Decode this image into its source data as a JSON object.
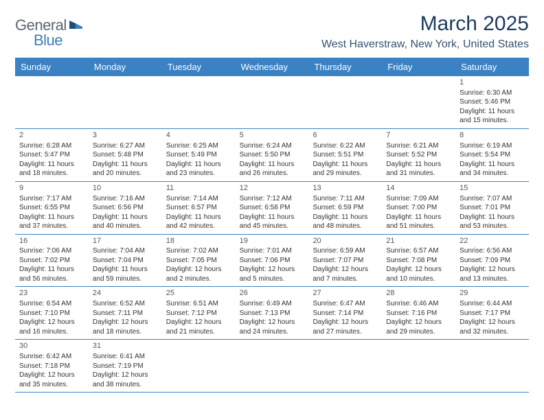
{
  "brand": {
    "general": "General",
    "blue": "Blue"
  },
  "title": {
    "month": "March 2025",
    "location": "West Haverstraw, New York, United States"
  },
  "colors": {
    "header_bg": "#3a82c4",
    "header_text": "#ffffff",
    "title_color": "#1f3a5f",
    "location_color": "#35526f",
    "logo_gray": "#5a6770",
    "logo_blue": "#3a7fb8",
    "row_border": "#3a82c4",
    "cell_text": "#333333",
    "background": "#ffffff"
  },
  "table": {
    "type": "calendar-grid",
    "columns": [
      "Sunday",
      "Monday",
      "Tuesday",
      "Wednesday",
      "Thursday",
      "Friday",
      "Saturday"
    ],
    "weeks": [
      [
        null,
        null,
        null,
        null,
        null,
        null,
        {
          "d": "1",
          "sr": "Sunrise: 6:30 AM",
          "ss": "Sunset: 5:46 PM",
          "dl": "Daylight: 11 hours and 15 minutes."
        }
      ],
      [
        {
          "d": "2",
          "sr": "Sunrise: 6:28 AM",
          "ss": "Sunset: 5:47 PM",
          "dl": "Daylight: 11 hours and 18 minutes."
        },
        {
          "d": "3",
          "sr": "Sunrise: 6:27 AM",
          "ss": "Sunset: 5:48 PM",
          "dl": "Daylight: 11 hours and 20 minutes."
        },
        {
          "d": "4",
          "sr": "Sunrise: 6:25 AM",
          "ss": "Sunset: 5:49 PM",
          "dl": "Daylight: 11 hours and 23 minutes."
        },
        {
          "d": "5",
          "sr": "Sunrise: 6:24 AM",
          "ss": "Sunset: 5:50 PM",
          "dl": "Daylight: 11 hours and 26 minutes."
        },
        {
          "d": "6",
          "sr": "Sunrise: 6:22 AM",
          "ss": "Sunset: 5:51 PM",
          "dl": "Daylight: 11 hours and 29 minutes."
        },
        {
          "d": "7",
          "sr": "Sunrise: 6:21 AM",
          "ss": "Sunset: 5:52 PM",
          "dl": "Daylight: 11 hours and 31 minutes."
        },
        {
          "d": "8",
          "sr": "Sunrise: 6:19 AM",
          "ss": "Sunset: 5:54 PM",
          "dl": "Daylight: 11 hours and 34 minutes."
        }
      ],
      [
        {
          "d": "9",
          "sr": "Sunrise: 7:17 AM",
          "ss": "Sunset: 6:55 PM",
          "dl": "Daylight: 11 hours and 37 minutes."
        },
        {
          "d": "10",
          "sr": "Sunrise: 7:16 AM",
          "ss": "Sunset: 6:56 PM",
          "dl": "Daylight: 11 hours and 40 minutes."
        },
        {
          "d": "11",
          "sr": "Sunrise: 7:14 AM",
          "ss": "Sunset: 6:57 PM",
          "dl": "Daylight: 11 hours and 42 minutes."
        },
        {
          "d": "12",
          "sr": "Sunrise: 7:12 AM",
          "ss": "Sunset: 6:58 PM",
          "dl": "Daylight: 11 hours and 45 minutes."
        },
        {
          "d": "13",
          "sr": "Sunrise: 7:11 AM",
          "ss": "Sunset: 6:59 PM",
          "dl": "Daylight: 11 hours and 48 minutes."
        },
        {
          "d": "14",
          "sr": "Sunrise: 7:09 AM",
          "ss": "Sunset: 7:00 PM",
          "dl": "Daylight: 11 hours and 51 minutes."
        },
        {
          "d": "15",
          "sr": "Sunrise: 7:07 AM",
          "ss": "Sunset: 7:01 PM",
          "dl": "Daylight: 11 hours and 53 minutes."
        }
      ],
      [
        {
          "d": "16",
          "sr": "Sunrise: 7:06 AM",
          "ss": "Sunset: 7:02 PM",
          "dl": "Daylight: 11 hours and 56 minutes."
        },
        {
          "d": "17",
          "sr": "Sunrise: 7:04 AM",
          "ss": "Sunset: 7:04 PM",
          "dl": "Daylight: 11 hours and 59 minutes."
        },
        {
          "d": "18",
          "sr": "Sunrise: 7:02 AM",
          "ss": "Sunset: 7:05 PM",
          "dl": "Daylight: 12 hours and 2 minutes."
        },
        {
          "d": "19",
          "sr": "Sunrise: 7:01 AM",
          "ss": "Sunset: 7:06 PM",
          "dl": "Daylight: 12 hours and 5 minutes."
        },
        {
          "d": "20",
          "sr": "Sunrise: 6:59 AM",
          "ss": "Sunset: 7:07 PM",
          "dl": "Daylight: 12 hours and 7 minutes."
        },
        {
          "d": "21",
          "sr": "Sunrise: 6:57 AM",
          "ss": "Sunset: 7:08 PM",
          "dl": "Daylight: 12 hours and 10 minutes."
        },
        {
          "d": "22",
          "sr": "Sunrise: 6:56 AM",
          "ss": "Sunset: 7:09 PM",
          "dl": "Daylight: 12 hours and 13 minutes."
        }
      ],
      [
        {
          "d": "23",
          "sr": "Sunrise: 6:54 AM",
          "ss": "Sunset: 7:10 PM",
          "dl": "Daylight: 12 hours and 16 minutes."
        },
        {
          "d": "24",
          "sr": "Sunrise: 6:52 AM",
          "ss": "Sunset: 7:11 PM",
          "dl": "Daylight: 12 hours and 18 minutes."
        },
        {
          "d": "25",
          "sr": "Sunrise: 6:51 AM",
          "ss": "Sunset: 7:12 PM",
          "dl": "Daylight: 12 hours and 21 minutes."
        },
        {
          "d": "26",
          "sr": "Sunrise: 6:49 AM",
          "ss": "Sunset: 7:13 PM",
          "dl": "Daylight: 12 hours and 24 minutes."
        },
        {
          "d": "27",
          "sr": "Sunrise: 6:47 AM",
          "ss": "Sunset: 7:14 PM",
          "dl": "Daylight: 12 hours and 27 minutes."
        },
        {
          "d": "28",
          "sr": "Sunrise: 6:46 AM",
          "ss": "Sunset: 7:16 PM",
          "dl": "Daylight: 12 hours and 29 minutes."
        },
        {
          "d": "29",
          "sr": "Sunrise: 6:44 AM",
          "ss": "Sunset: 7:17 PM",
          "dl": "Daylight: 12 hours and 32 minutes."
        }
      ],
      [
        {
          "d": "30",
          "sr": "Sunrise: 6:42 AM",
          "ss": "Sunset: 7:18 PM",
          "dl": "Daylight: 12 hours and 35 minutes."
        },
        {
          "d": "31",
          "sr": "Sunrise: 6:41 AM",
          "ss": "Sunset: 7:19 PM",
          "dl": "Daylight: 12 hours and 38 minutes."
        },
        null,
        null,
        null,
        null,
        null
      ]
    ]
  }
}
